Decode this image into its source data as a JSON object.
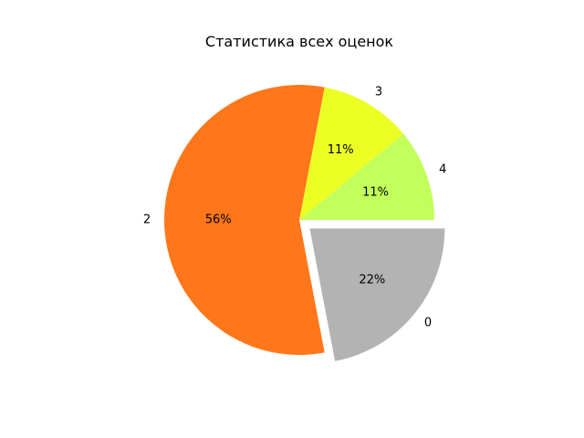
{
  "chart_data": {
    "type": "pie",
    "title": "Статистика всех оценок",
    "slices": [
      {
        "label": "4",
        "value": 11,
        "pct_label": "11%",
        "color": "#c2ff5b",
        "explode": false
      },
      {
        "label": "3",
        "value": 11,
        "pct_label": "11%",
        "color": "#ecff24",
        "explode": false
      },
      {
        "label": "2",
        "value": 56,
        "pct_label": "56%",
        "color": "#ff771a",
        "explode": false
      },
      {
        "label": "0",
        "value": 22,
        "pct_label": "22%",
        "color": "#b3b3b3",
        "explode": true
      }
    ],
    "start_angle_deg": 0,
    "direction": "counterclockwise"
  }
}
